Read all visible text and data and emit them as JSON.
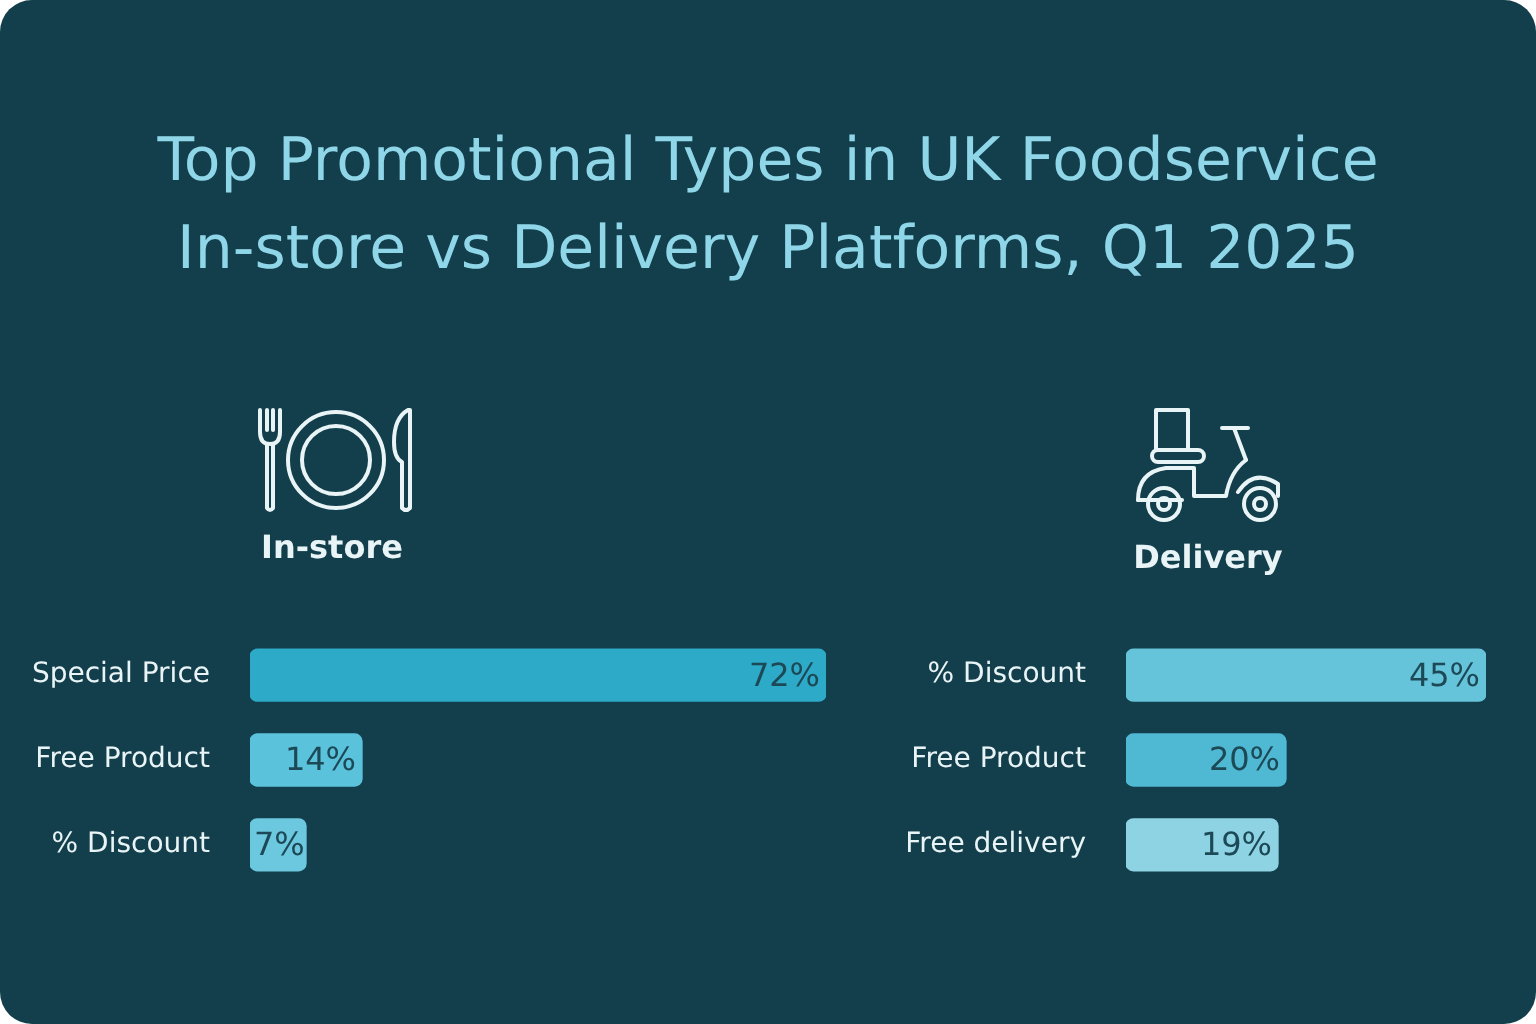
{
  "chart_data": [
    {
      "type": "other",
      "title": "Top Promotional Types in UK Foodservice",
      "subtitle": "In-store vs Delivery Platforms, Q1 2025"
    },
    {
      "type": "bar",
      "orientation": "horizontal",
      "title": "In-store",
      "categories": [
        "Special Price",
        "Free Product",
        "% Discount"
      ],
      "values": [
        72,
        14,
        7
      ],
      "colors": [
        "#2caac7",
        "#5bc2dc",
        "#6cc8df"
      ],
      "value_labels": [
        "72%",
        "14%",
        "7%"
      ]
    },
    {
      "type": "bar",
      "orientation": "horizontal",
      "title": "Delivery",
      "categories": [
        "% Discount",
        "Free Product",
        "Free delivery"
      ],
      "values": [
        45,
        20,
        19
      ],
      "colors": [
        "#65c3da",
        "#4fb8d2",
        "#8ed3e3"
      ],
      "value_labels": [
        "45%",
        "20%",
        "19%"
      ]
    }
  ]
}
